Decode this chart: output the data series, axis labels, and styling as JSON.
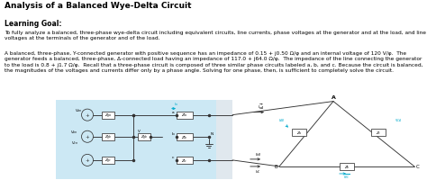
{
  "title": "Analysis of a Balanced Wye-Delta Circuit",
  "subtitle": "Learning Goal:",
  "body_text1": "To fully analyze a balanced, three-phase wye-delta circuit including equivalent circuits, line currents, phase voltages at the generator and at the load, and line voltages at the terminals of the generator and of the load.",
  "body_text2": "A balanced, three-phase, Y-connected generator with positive sequence has an impedance of 0.15 + j0.50 Ω/φ and an internal voltage of 120 V/φ.  The generator feeds a balanced, three-phase, Δ-connected load having an impedance of 117.0 + j64.0 Ω/φ.  The impedance of the line connecting the generator to the load is 0.8 + j1.7 Ω/φ.  Recall that a three-phase circuit is composed of three similar phase circuits labeled a, b, and c. Because the circuit is balanced, the magnitudes of the voltages and currents differ only by a phase angle. Solving for one phase, then, is sufficient to completely solve the circuit.",
  "bg_color": "#ffffff",
  "diagram_bg": "#cce8f4",
  "text_color": "#000000",
  "title_fontsize": 6.5,
  "subtitle_fontsize": 5.5,
  "body_fontsize": 4.2,
  "cyan_color": "#00aacc"
}
